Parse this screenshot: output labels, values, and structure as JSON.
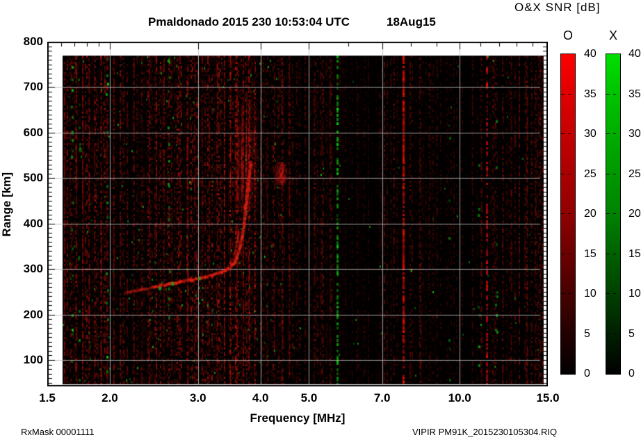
{
  "header": {
    "title": "Pmaldonado 2015 230 10:53:04 UTC",
    "date": "18Aug15",
    "colorbar_title": "O&X SNR [dB]"
  },
  "footer": {
    "left": "RxMask 00001111",
    "right": "VIPIR  PM91K_2015230105304.RIQ"
  },
  "chart_data": {
    "type": "heatmap",
    "title": "Pmaldonado 2015 230 10:53:04 UTC",
    "subtitle_date": "18Aug15",
    "xlabel": "Frequency [MHz]",
    "ylabel": "Range [km]",
    "x_scale": "log",
    "x_range_mhz": [
      1.5,
      15.0
    ],
    "y_range_km": [
      45,
      800
    ],
    "grid": {
      "x_mhz": [
        2,
        3,
        4,
        5,
        7,
        10
      ],
      "y_km": [
        100,
        200,
        300,
        400,
        500,
        600,
        700
      ],
      "color": "#b9b9b9"
    },
    "x_ticks": [
      {
        "label": "1.5",
        "mhz": 1.5
      },
      {
        "label": "2.0",
        "mhz": 2
      },
      {
        "label": "3.0",
        "mhz": 3
      },
      {
        "label": "4.0",
        "mhz": 4
      },
      {
        "label": "5.0",
        "mhz": 5
      },
      {
        "label": "7.0",
        "mhz": 7
      },
      {
        "label": "10.0",
        "mhz": 10
      },
      {
        "label": "15.0",
        "mhz": 15
      }
    ],
    "x_minor_ticks_mhz": [
      1.6,
      1.7,
      1.8,
      1.9,
      6,
      8,
      9,
      11,
      12,
      13,
      14
    ],
    "y_ticks": [
      {
        "label": "800",
        "km": 800
      },
      {
        "label": "700",
        "km": 700
      },
      {
        "label": "600",
        "km": 600
      },
      {
        "label": "500",
        "km": 500
      },
      {
        "label": "400",
        "km": 400
      },
      {
        "label": "300",
        "km": 300
      },
      {
        "label": "200",
        "km": 200
      },
      {
        "label": "100",
        "km": 100
      }
    ],
    "y_minor_step_km": 10,
    "colorbars": [
      {
        "name": "O",
        "polarization": "O-mode",
        "top_color": "#ff0000",
        "bottom_color": "#000000",
        "range_db": [
          0,
          40
        ],
        "tick_labels": [
          "40",
          "35",
          "30",
          "25",
          "20",
          "15",
          "10",
          "5",
          "0"
        ]
      },
      {
        "name": "X",
        "polarization": "X-mode",
        "top_color": "#00dd00",
        "bottom_color": "#000000",
        "range_db": [
          0,
          40
        ],
        "tick_labels": [
          "40",
          "35",
          "30",
          "25",
          "20",
          "15",
          "10",
          "5",
          "0"
        ]
      }
    ],
    "f_layer_trace_mhz_km": [
      [
        2.15,
        248
      ],
      [
        2.3,
        254
      ],
      [
        2.45,
        260
      ],
      [
        2.6,
        266
      ],
      [
        2.75,
        271
      ],
      [
        2.9,
        276
      ],
      [
        3.05,
        280
      ],
      [
        3.2,
        286
      ],
      [
        3.35,
        293
      ],
      [
        3.45,
        300
      ],
      [
        3.53,
        310
      ],
      [
        3.59,
        325
      ],
      [
        3.64,
        345
      ],
      [
        3.68,
        370
      ],
      [
        3.71,
        400
      ],
      [
        3.74,
        435
      ],
      [
        3.77,
        470
      ],
      [
        3.8,
        505
      ],
      [
        3.83,
        535
      ]
    ],
    "inner_branch_mhz_km": [
      [
        3.4,
        297
      ],
      [
        3.49,
        312
      ],
      [
        3.55,
        332
      ],
      [
        3.59,
        355
      ],
      [
        3.62,
        382
      ]
    ],
    "spread_echo": {
      "f_mhz": [
        3.55,
        3.95
      ],
      "range_km": [
        430,
        670
      ],
      "peak_mhz": 3.72,
      "peak_km": 540
    },
    "patch_echo": {
      "f_mhz": [
        4.28,
        4.52
      ],
      "range_km": [
        485,
        535
      ]
    },
    "rfi_streaks_red": [
      [
        1.62,
        0.55,
        0.7
      ],
      [
        1.66,
        0.45,
        0.6
      ],
      [
        1.71,
        0.5,
        0.65
      ],
      [
        1.76,
        0.6,
        0.7
      ],
      [
        1.81,
        0.5,
        0.6
      ],
      [
        1.86,
        0.45,
        0.6
      ],
      [
        1.92,
        0.55,
        0.65
      ],
      [
        1.97,
        0.5,
        0.6
      ],
      [
        2.03,
        0.5,
        0.6
      ],
      [
        2.09,
        0.45,
        0.55
      ],
      [
        2.16,
        0.45,
        0.55
      ],
      [
        2.23,
        0.5,
        0.6
      ],
      [
        2.31,
        0.45,
        0.55
      ],
      [
        2.39,
        0.5,
        0.6
      ],
      [
        2.47,
        0.55,
        0.6
      ],
      [
        2.56,
        0.5,
        0.55
      ],
      [
        2.65,
        0.45,
        0.55
      ],
      [
        2.75,
        0.5,
        0.6
      ],
      [
        2.85,
        0.55,
        0.6
      ],
      [
        2.95,
        0.5,
        0.55
      ],
      [
        3.05,
        0.45,
        0.55
      ],
      [
        3.15,
        0.45,
        0.5
      ],
      [
        3.26,
        0.45,
        0.55
      ],
      [
        3.38,
        0.55,
        0.6
      ],
      [
        3.48,
        0.6,
        0.65
      ],
      [
        3.58,
        0.65,
        0.7
      ],
      [
        3.68,
        0.6,
        0.7
      ],
      [
        3.78,
        0.6,
        0.65
      ],
      [
        3.88,
        0.5,
        0.6
      ],
      [
        4.0,
        0.4,
        0.5
      ],
      [
        4.12,
        0.38,
        0.5
      ],
      [
        4.26,
        0.42,
        0.5
      ],
      [
        4.4,
        0.5,
        0.55
      ],
      [
        4.55,
        0.45,
        0.55
      ],
      [
        4.72,
        0.35,
        0.45
      ],
      [
        4.9,
        0.4,
        0.5
      ],
      [
        5.1,
        0.35,
        0.45
      ],
      [
        5.3,
        0.3,
        0.4
      ],
      [
        5.5,
        0.32,
        0.45
      ],
      [
        5.9,
        0.28,
        0.4
      ],
      [
        6.2,
        0.25,
        0.35
      ],
      [
        6.55,
        0.28,
        0.4
      ],
      [
        6.9,
        0.25,
        0.35
      ],
      [
        7.25,
        0.3,
        0.4
      ],
      [
        7.7,
        0.95,
        0.85
      ],
      [
        7.95,
        0.45,
        0.5
      ],
      [
        8.3,
        0.3,
        0.4
      ],
      [
        8.7,
        0.28,
        0.4
      ],
      [
        9.15,
        0.3,
        0.4
      ],
      [
        9.6,
        0.25,
        0.35
      ],
      [
        10.1,
        0.3,
        0.4
      ],
      [
        10.6,
        0.3,
        0.4
      ],
      [
        11.05,
        0.45,
        0.5
      ],
      [
        11.3,
        0.85,
        0.55
      ],
      [
        11.7,
        0.3,
        0.4
      ],
      [
        12.2,
        0.35,
        0.45
      ],
      [
        12.65,
        0.4,
        0.5
      ],
      [
        13.1,
        0.35,
        0.45
      ],
      [
        13.6,
        0.4,
        0.5
      ],
      [
        14.1,
        0.35,
        0.45
      ],
      [
        14.5,
        0.3,
        0.4
      ]
    ],
    "green_streaks": [
      {
        "f": 5.68,
        "s": 0.95,
        "d": 0.5,
        "type": "line"
      },
      {
        "f": 1.97,
        "s": 0.9,
        "d": 0.12,
        "type": "specks"
      },
      {
        "f": 1.68,
        "s": 0.8,
        "d": 0.1,
        "type": "specks"
      },
      {
        "f": 1.73,
        "s": 0.7,
        "d": 0.08,
        "type": "specks"
      },
      {
        "f": 2.62,
        "s": 0.8,
        "d": 0.06,
        "type": "specks"
      },
      {
        "f": 9.5,
        "s": 0.7,
        "d": 0.04,
        "type": "specks"
      },
      {
        "f": 10.9,
        "s": 0.7,
        "d": 0.05,
        "type": "specks"
      },
      {
        "f": 11.8,
        "s": 0.75,
        "d": 0.06,
        "type": "specks"
      }
    ],
    "noise": {
      "seed": 7,
      "bands": [
        {
          "f1": 1.6,
          "f2": 1.72,
          "d": 0.9,
          "b": 0.75
        },
        {
          "f1": 1.72,
          "f2": 2.05,
          "d": 0.95,
          "b": 0.8
        },
        {
          "f1": 2.05,
          "f2": 2.35,
          "d": 0.8,
          "b": 0.55
        },
        {
          "f1": 2.35,
          "f2": 3.35,
          "d": 0.95,
          "b": 0.75
        },
        {
          "f1": 3.35,
          "f2": 3.95,
          "d": 0.95,
          "b": 0.85
        },
        {
          "f1": 3.95,
          "f2": 4.7,
          "d": 0.85,
          "b": 0.6
        },
        {
          "f1": 4.7,
          "f2": 5.6,
          "d": 0.7,
          "b": 0.45
        },
        {
          "f1": 5.6,
          "f2": 6.8,
          "d": 0.6,
          "b": 0.35
        },
        {
          "f1": 6.8,
          "f2": 8.4,
          "d": 0.7,
          "b": 0.5
        },
        {
          "f1": 8.4,
          "f2": 10.5,
          "d": 0.6,
          "b": 0.35
        },
        {
          "f1": 10.5,
          "f2": 12.0,
          "d": 0.65,
          "b": 0.45
        },
        {
          "f1": 12.0,
          "f2": 14.8,
          "d": 0.7,
          "b": 0.5
        }
      ]
    }
  }
}
